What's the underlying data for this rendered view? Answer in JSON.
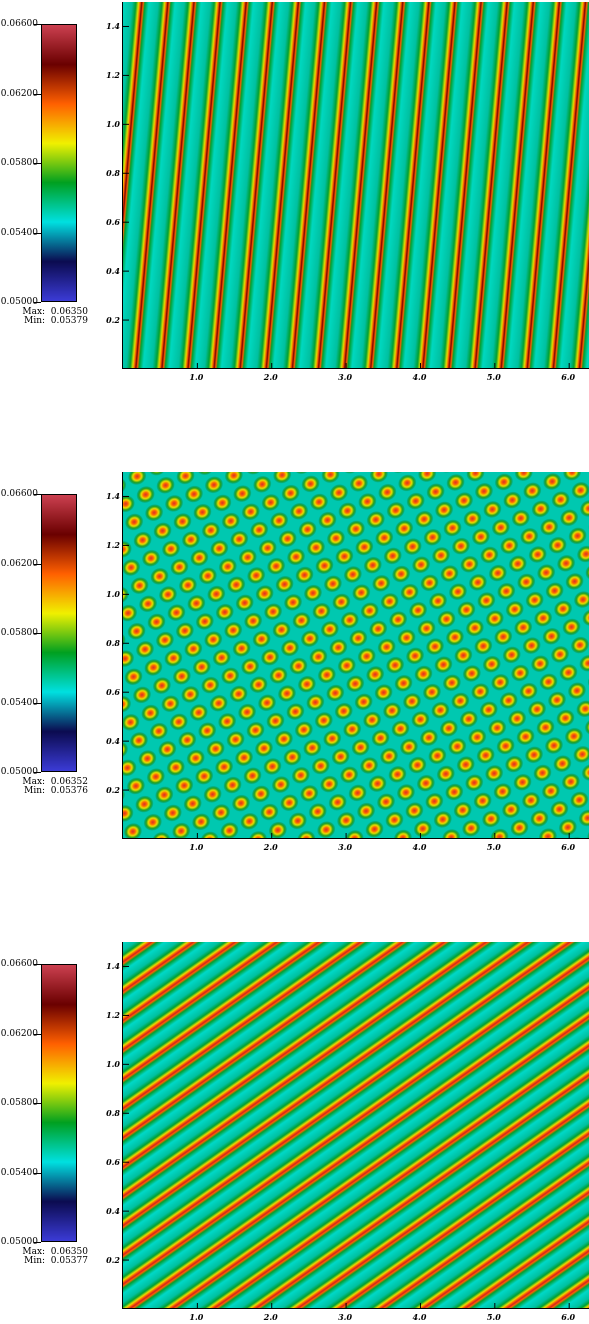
{
  "chart_data": [
    {
      "type": "heatmap",
      "pattern": "nearly vertical stripes",
      "colorbar": {
        "ticks": [
          "0.06600",
          "0.06200",
          "0.05800",
          "0.05400",
          "0.05000"
        ],
        "range": [
          0.05,
          0.066
        ],
        "colormap": [
          "#3b3bd6",
          "#0b0b50",
          "#00e0e0",
          "#00a020",
          "#f0f000",
          "#ff6000",
          "#6a0000",
          "#cc4050"
        ]
      },
      "max_label": "Max:  0.06350",
      "min_label": "Min:  0.05379",
      "max": 0.0635,
      "min": 0.05379,
      "xticks": [
        "1.0",
        "2.0",
        "3.0",
        "4.0",
        "5.0",
        "6.0"
      ],
      "yticks": [
        "1.4",
        "1.2",
        "1.0",
        "0.8",
        "0.6",
        "0.4",
        "0.2"
      ],
      "xlim": [
        0,
        6.28
      ],
      "ylim": [
        0,
        1.5
      ]
    },
    {
      "type": "heatmap",
      "pattern": "diagonal lattice of spots",
      "colorbar": {
        "ticks": [
          "0.06600",
          "0.06200",
          "0.05800",
          "0.05400",
          "0.05000"
        ],
        "range": [
          0.05,
          0.066
        ],
        "colormap": [
          "#3b3bd6",
          "#0b0b50",
          "#00e0e0",
          "#00a020",
          "#f0f000",
          "#ff6000",
          "#6a0000",
          "#cc4050"
        ]
      },
      "max_label": "Max:  0.06352",
      "min_label": "Min:  0.05376",
      "max": 0.06352,
      "min": 0.05376,
      "xticks": [
        "1.0",
        "2.0",
        "3.0",
        "4.0",
        "5.0",
        "6.0"
      ],
      "yticks": [
        "1.4",
        "1.2",
        "1.0",
        "0.8",
        "0.6",
        "0.4",
        "0.2"
      ],
      "xlim": [
        0,
        6.28
      ],
      "ylim": [
        0,
        1.5
      ]
    },
    {
      "type": "heatmap",
      "pattern": "diagonal stripes rising to the right",
      "colorbar": {
        "ticks": [
          "0.06600",
          "0.06200",
          "0.05800",
          "0.05400",
          "0.05000"
        ],
        "range": [
          0.05,
          0.066
        ],
        "colormap": [
          "#3b3bd6",
          "#0b0b50",
          "#00e0e0",
          "#00a020",
          "#f0f000",
          "#ff6000",
          "#6a0000",
          "#cc4050"
        ]
      },
      "max_label": "Max:  0.06350",
      "min_label": "Min:  0.05377",
      "max": 0.0635,
      "min": 0.05377,
      "xticks": [
        "1.0",
        "2.0",
        "3.0",
        "4.0",
        "5.0",
        "6.0"
      ],
      "yticks": [
        "1.4",
        "1.2",
        "1.0",
        "0.8",
        "0.6",
        "0.4",
        "0.2"
      ],
      "xlim": [
        0,
        6.28
      ],
      "ylim": [
        0,
        1.5
      ]
    }
  ]
}
